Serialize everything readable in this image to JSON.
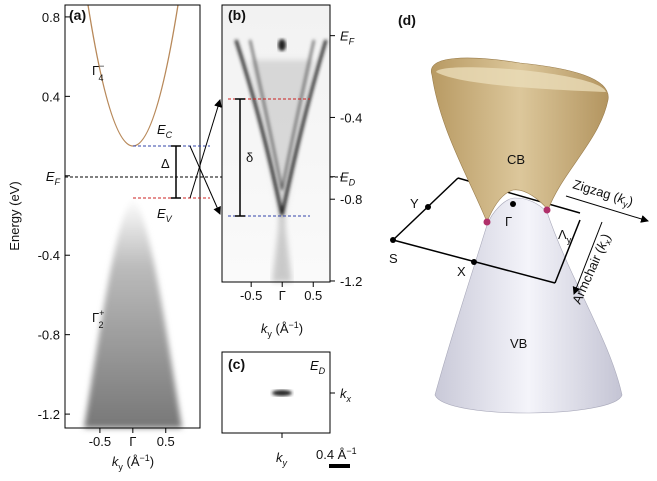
{
  "panel_a": {
    "label": "(a)",
    "y_label": "Energy (eV)",
    "x_label": [
      "k",
      "y",
      " (Å",
      "−1",
      ")"
    ],
    "ylim": [
      -1.27,
      0.86
    ],
    "yticks": [
      0.8,
      0.4,
      {
        "value": 0,
        "label": [
          "E",
          "F"
        ]
      },
      -0.4,
      -0.8,
      -1.2
    ],
    "xlim": [
      -1.03,
      1.02
    ],
    "xticks": [
      -0.5,
      {
        "value": 0,
        "label": "Γ"
      },
      0.5
    ],
    "band_labels": {
      "cb": [
        "Γ",
        "−",
        "4"
      ],
      "vb": [
        "Γ",
        "+",
        "2"
      ],
      "ec": [
        "E",
        "C"
      ],
      "ev": [
        "E",
        "V"
      ],
      "gap": "Δ"
    }
  },
  "panel_b": {
    "label": "(b)",
    "x_label": [
      "k",
      "y",
      " (Å",
      "−1",
      ")"
    ],
    "ylim": [
      -1.205,
      0.15
    ],
    "yticks": [
      {
        "value": 0,
        "label": [
          "E",
          "F"
        ]
      },
      -0.4,
      {
        "value": -0.69,
        "label": [
          "E",
          "D"
        ]
      },
      -0.8,
      -1.2
    ],
    "xlim": [
      -0.97,
      0.77
    ],
    "xticks": [
      -0.5,
      {
        "value": 0,
        "label": "Γ"
      },
      0.5
    ],
    "splitting": "δ"
  },
  "panel_c": {
    "label": "(c)",
    "energy": [
      "E",
      "D"
    ],
    "kx": [
      "k",
      "x"
    ],
    "ky": [
      "k",
      "y"
    ],
    "scale": [
      "0.4 Å",
      "−1"
    ]
  },
  "panel_d": {
    "label": "(d)",
    "cb": "CB",
    "vb": "VB",
    "points": {
      "y": "Y",
      "s": "S",
      "x": "X",
      "gamma": "Γ",
      "lambda": [
        "Λ",
        "y"
      ]
    },
    "zigzag": [
      "Zigzag (",
      "k",
      "y",
      ")"
    ],
    "armchair": [
      "Armchair (",
      "k",
      "x",
      ")"
    ]
  }
}
